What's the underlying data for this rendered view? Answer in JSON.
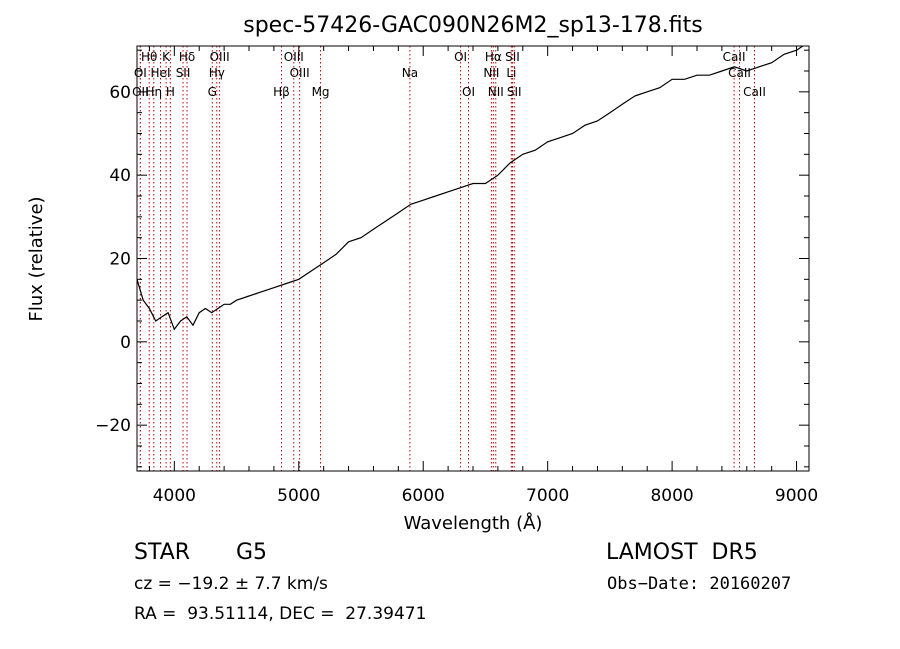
{
  "chart_data": {
    "type": "line",
    "title": "spec-57426-GAC090N26M2_sp13-178.fits",
    "xlabel": "Wavelength (Å)",
    "ylabel": "Flux (relative)",
    "xlim": [
      3700,
      9100
    ],
    "ylim": [
      -31,
      71
    ],
    "x_ticks": [
      4000,
      5000,
      6000,
      7000,
      8000,
      9000
    ],
    "y_ticks": [
      -20,
      0,
      20,
      40,
      60
    ],
    "line_color": "#000000",
    "marker_color": "#c00000",
    "series": [
      {
        "x": [
          3700,
          3750,
          3800,
          3850,
          3900,
          3950,
          4000,
          4050,
          4100,
          4150,
          4200,
          4250,
          4300,
          4350,
          4400,
          4450,
          4500,
          4600,
          4700,
          4800,
          4900,
          5000,
          5100,
          5200,
          5300,
          5400,
          5500,
          5600,
          5700,
          5800,
          5900,
          6000,
          6100,
          6200,
          6300,
          6400,
          6500,
          6600,
          6700,
          6800,
          6900,
          7000,
          7100,
          7200,
          7300,
          7400,
          7500,
          7600,
          7700,
          7800,
          7900,
          8000,
          8100,
          8200,
          8300,
          8400,
          8500,
          8600,
          8700,
          8800,
          8900,
          9000,
          9050
        ],
        "y": [
          15,
          10,
          8,
          5,
          6,
          7,
          3,
          5,
          6,
          4,
          7,
          8,
          7,
          8,
          9,
          9,
          10,
          11,
          12,
          13,
          14,
          15,
          17,
          19,
          21,
          24,
          25,
          27,
          29,
          31,
          33,
          34,
          35,
          36,
          37,
          38,
          38,
          40,
          43,
          45,
          46,
          48,
          49,
          50,
          52,
          53,
          55,
          57,
          59,
          60,
          61,
          63,
          63,
          64,
          64,
          65,
          66,
          65,
          66,
          67,
          69,
          70,
          71
        ]
      }
    ],
    "lines": [
      {
        "label": "Hθ",
        "x": 3798,
        "row": 0
      },
      {
        "label": "K",
        "x": 3934,
        "row": 0
      },
      {
        "label": "Hδ",
        "x": 4102,
        "row": 0
      },
      {
        "label": "OIII",
        "x": 4364,
        "row": 0
      },
      {
        "label": "OIII",
        "x": 4960,
        "row": 0
      },
      {
        "label": "OI",
        "x": 6300,
        "row": 0
      },
      {
        "label": "Hα",
        "x": 6563,
        "row": 0
      },
      {
        "label": "SII",
        "x": 6717,
        "row": 0
      },
      {
        "label": "CaII",
        "x": 8498,
        "row": 0
      },
      {
        "label": "OI",
        "x": 3727,
        "row": 1
      },
      {
        "label": "HeI",
        "x": 3889,
        "row": 1
      },
      {
        "label": "SII",
        "x": 4070,
        "row": 1
      },
      {
        "label": "Hγ",
        "x": 4341,
        "row": 1
      },
      {
        "label": "OIII",
        "x": 5007,
        "row": 1
      },
      {
        "label": "Na",
        "x": 5893,
        "row": 1
      },
      {
        "label": "NII",
        "x": 6548,
        "row": 1
      },
      {
        "label": "Li",
        "x": 6708,
        "row": 1
      },
      {
        "label": "CaII",
        "x": 8542,
        "row": 1
      },
      {
        "label": "OII",
        "x": 3727,
        "row": 2
      },
      {
        "label": "Hη",
        "x": 3835,
        "row": 2
      },
      {
        "label": "H",
        "x": 3968,
        "row": 2
      },
      {
        "label": "G",
        "x": 4305,
        "row": 2
      },
      {
        "label": "Hβ",
        "x": 4861,
        "row": 2
      },
      {
        "label": "Mg",
        "x": 5175,
        "row": 2
      },
      {
        "label": "OI",
        "x": 6364,
        "row": 2
      },
      {
        "label": "NII",
        "x": 6583,
        "row": 2
      },
      {
        "label": "SII",
        "x": 6731,
        "row": 2
      },
      {
        "label": "CaII",
        "x": 8662,
        "row": 2
      }
    ],
    "grid": false
  },
  "info": {
    "class_label": "STAR",
    "subclass": "G5",
    "survey": "LAMOST  DR5",
    "cz": "cz = −19.2 ± 7.7 km/s",
    "obs_date": "Obs−Date: 20160207",
    "coords": "RA =  93.51114, DEC =  27.39471"
  }
}
